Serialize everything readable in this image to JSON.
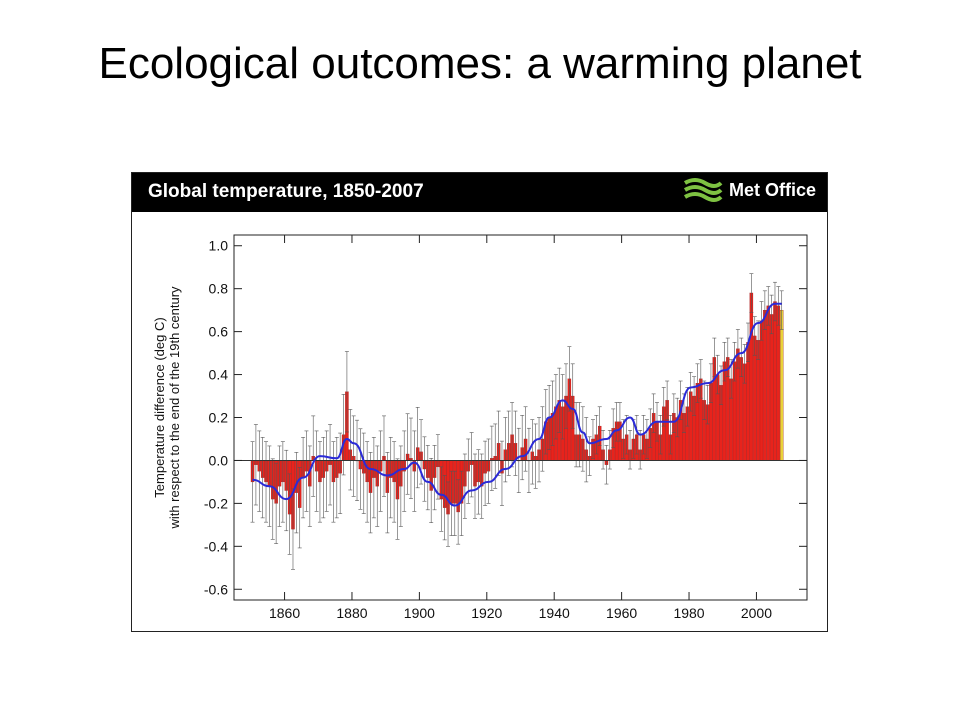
{
  "slide": {
    "title": "Ecological outcomes: a warming planet"
  },
  "figure": {
    "title": "Global temperature, 1850-2007",
    "logo_text": "Met Office"
  },
  "colors": {
    "bar_fill": "#e8231c",
    "bar_fill_final": "#e8d23a",
    "smooth_line": "#2a2ad8",
    "error_bar": "#555555"
  },
  "chart_data": {
    "type": "bar",
    "title": "Global temperature, 1850-2007",
    "ylabel": "Temperature difference (deg C) with respect to the end of the 19th century",
    "xlabel": "",
    "xlim": [
      1845,
      2015
    ],
    "ylim": [
      -0.65,
      1.05
    ],
    "x_ticks": [
      1860,
      1880,
      1900,
      1920,
      1940,
      1960,
      1980,
      2000
    ],
    "y_ticks": [
      -0.6,
      -0.4,
      -0.2,
      0.0,
      0.2,
      0.4,
      0.6,
      0.8,
      1.0
    ],
    "x_tick_labels": [
      "1860",
      "1880",
      "1900",
      "1920",
      "1940",
      "1960",
      "1980",
      "2000"
    ],
    "y_tick_labels": [
      "-0.6",
      "-0.4",
      "-0.2",
      "0.0",
      "0.2",
      "0.4",
      "0.6",
      "0.8",
      "1.0"
    ],
    "grid": false,
    "years_start": 1850,
    "annual_anomaly": [
      -0.1,
      -0.02,
      -0.05,
      -0.08,
      -0.1,
      -0.12,
      -0.18,
      -0.2,
      -0.12,
      -0.1,
      -0.14,
      -0.25,
      -0.32,
      -0.15,
      -0.22,
      -0.08,
      -0.05,
      -0.12,
      0.02,
      -0.05,
      -0.1,
      -0.08,
      -0.05,
      -0.02,
      -0.1,
      -0.08,
      -0.06,
      0.12,
      0.32,
      0.05,
      0.02,
      0.0,
      -0.04,
      -0.06,
      -0.1,
      -0.15,
      -0.08,
      -0.12,
      -0.05,
      0.02,
      -0.15,
      -0.08,
      -0.1,
      -0.18,
      -0.12,
      -0.05,
      0.03,
      0.01,
      -0.05,
      0.06,
      0.04,
      -0.04,
      -0.08,
      -0.14,
      -0.08,
      -0.03,
      -0.18,
      -0.22,
      -0.25,
      -0.2,
      -0.2,
      -0.24,
      -0.2,
      -0.12,
      -0.05,
      -0.02,
      -0.12,
      -0.1,
      -0.12,
      -0.06,
      -0.05,
      0.01,
      0.02,
      0.08,
      -0.06,
      0.05,
      0.08,
      0.12,
      0.08,
      0.0,
      0.06,
      0.1,
      0.0,
      0.04,
      0.02,
      0.05,
      0.1,
      0.18,
      0.2,
      0.22,
      0.25,
      0.28,
      0.25,
      0.3,
      0.38,
      0.3,
      0.12,
      0.12,
      0.1,
      0.05,
      0.02,
      0.1,
      0.12,
      0.16,
      0.05,
      -0.02,
      0.05,
      0.15,
      0.18,
      0.18,
      0.1,
      0.12,
      0.05,
      0.1,
      0.12,
      0.05,
      0.12,
      0.1,
      0.15,
      0.22,
      0.18,
      0.12,
      0.25,
      0.28,
      0.12,
      0.22,
      0.2,
      0.28,
      0.22,
      0.25,
      0.32,
      0.3,
      0.36,
      0.38,
      0.28,
      0.26,
      0.36,
      0.48,
      0.4,
      0.35,
      0.46,
      0.48,
      0.38,
      0.46,
      0.52,
      0.48,
      0.45,
      0.55,
      0.78,
      0.58,
      0.56,
      0.65,
      0.7,
      0.72,
      0.68,
      0.74,
      0.72,
      0.7
    ],
    "smoothed": [
      [
        1850,
        -0.09
      ],
      [
        1855,
        -0.12
      ],
      [
        1860,
        -0.18
      ],
      [
        1865,
        -0.08
      ],
      [
        1870,
        0.02
      ],
      [
        1875,
        0.01
      ],
      [
        1878,
        0.1
      ],
      [
        1880,
        0.08
      ],
      [
        1885,
        -0.04
      ],
      [
        1890,
        -0.07
      ],
      [
        1895,
        -0.04
      ],
      [
        1898,
        -0.01
      ],
      [
        1902,
        -0.1
      ],
      [
        1906,
        -0.16
      ],
      [
        1910,
        -0.21
      ],
      [
        1915,
        -0.14
      ],
      [
        1920,
        -0.1
      ],
      [
        1925,
        -0.04
      ],
      [
        1930,
        0.02
      ],
      [
        1935,
        0.1
      ],
      [
        1938,
        0.2
      ],
      [
        1942,
        0.28
      ],
      [
        1945,
        0.24
      ],
      [
        1948,
        0.13
      ],
      [
        1950,
        0.08
      ],
      [
        1955,
        0.1
      ],
      [
        1958,
        0.14
      ],
      [
        1962,
        0.2
      ],
      [
        1965,
        0.12
      ],
      [
        1970,
        0.18
      ],
      [
        1975,
        0.18
      ],
      [
        1980,
        0.34
      ],
      [
        1985,
        0.36
      ],
      [
        1990,
        0.42
      ],
      [
        1995,
        0.5
      ],
      [
        2000,
        0.64
      ],
      [
        2005,
        0.73
      ],
      [
        2007,
        0.73
      ]
    ],
    "error_halfwidth": 0.15
  }
}
